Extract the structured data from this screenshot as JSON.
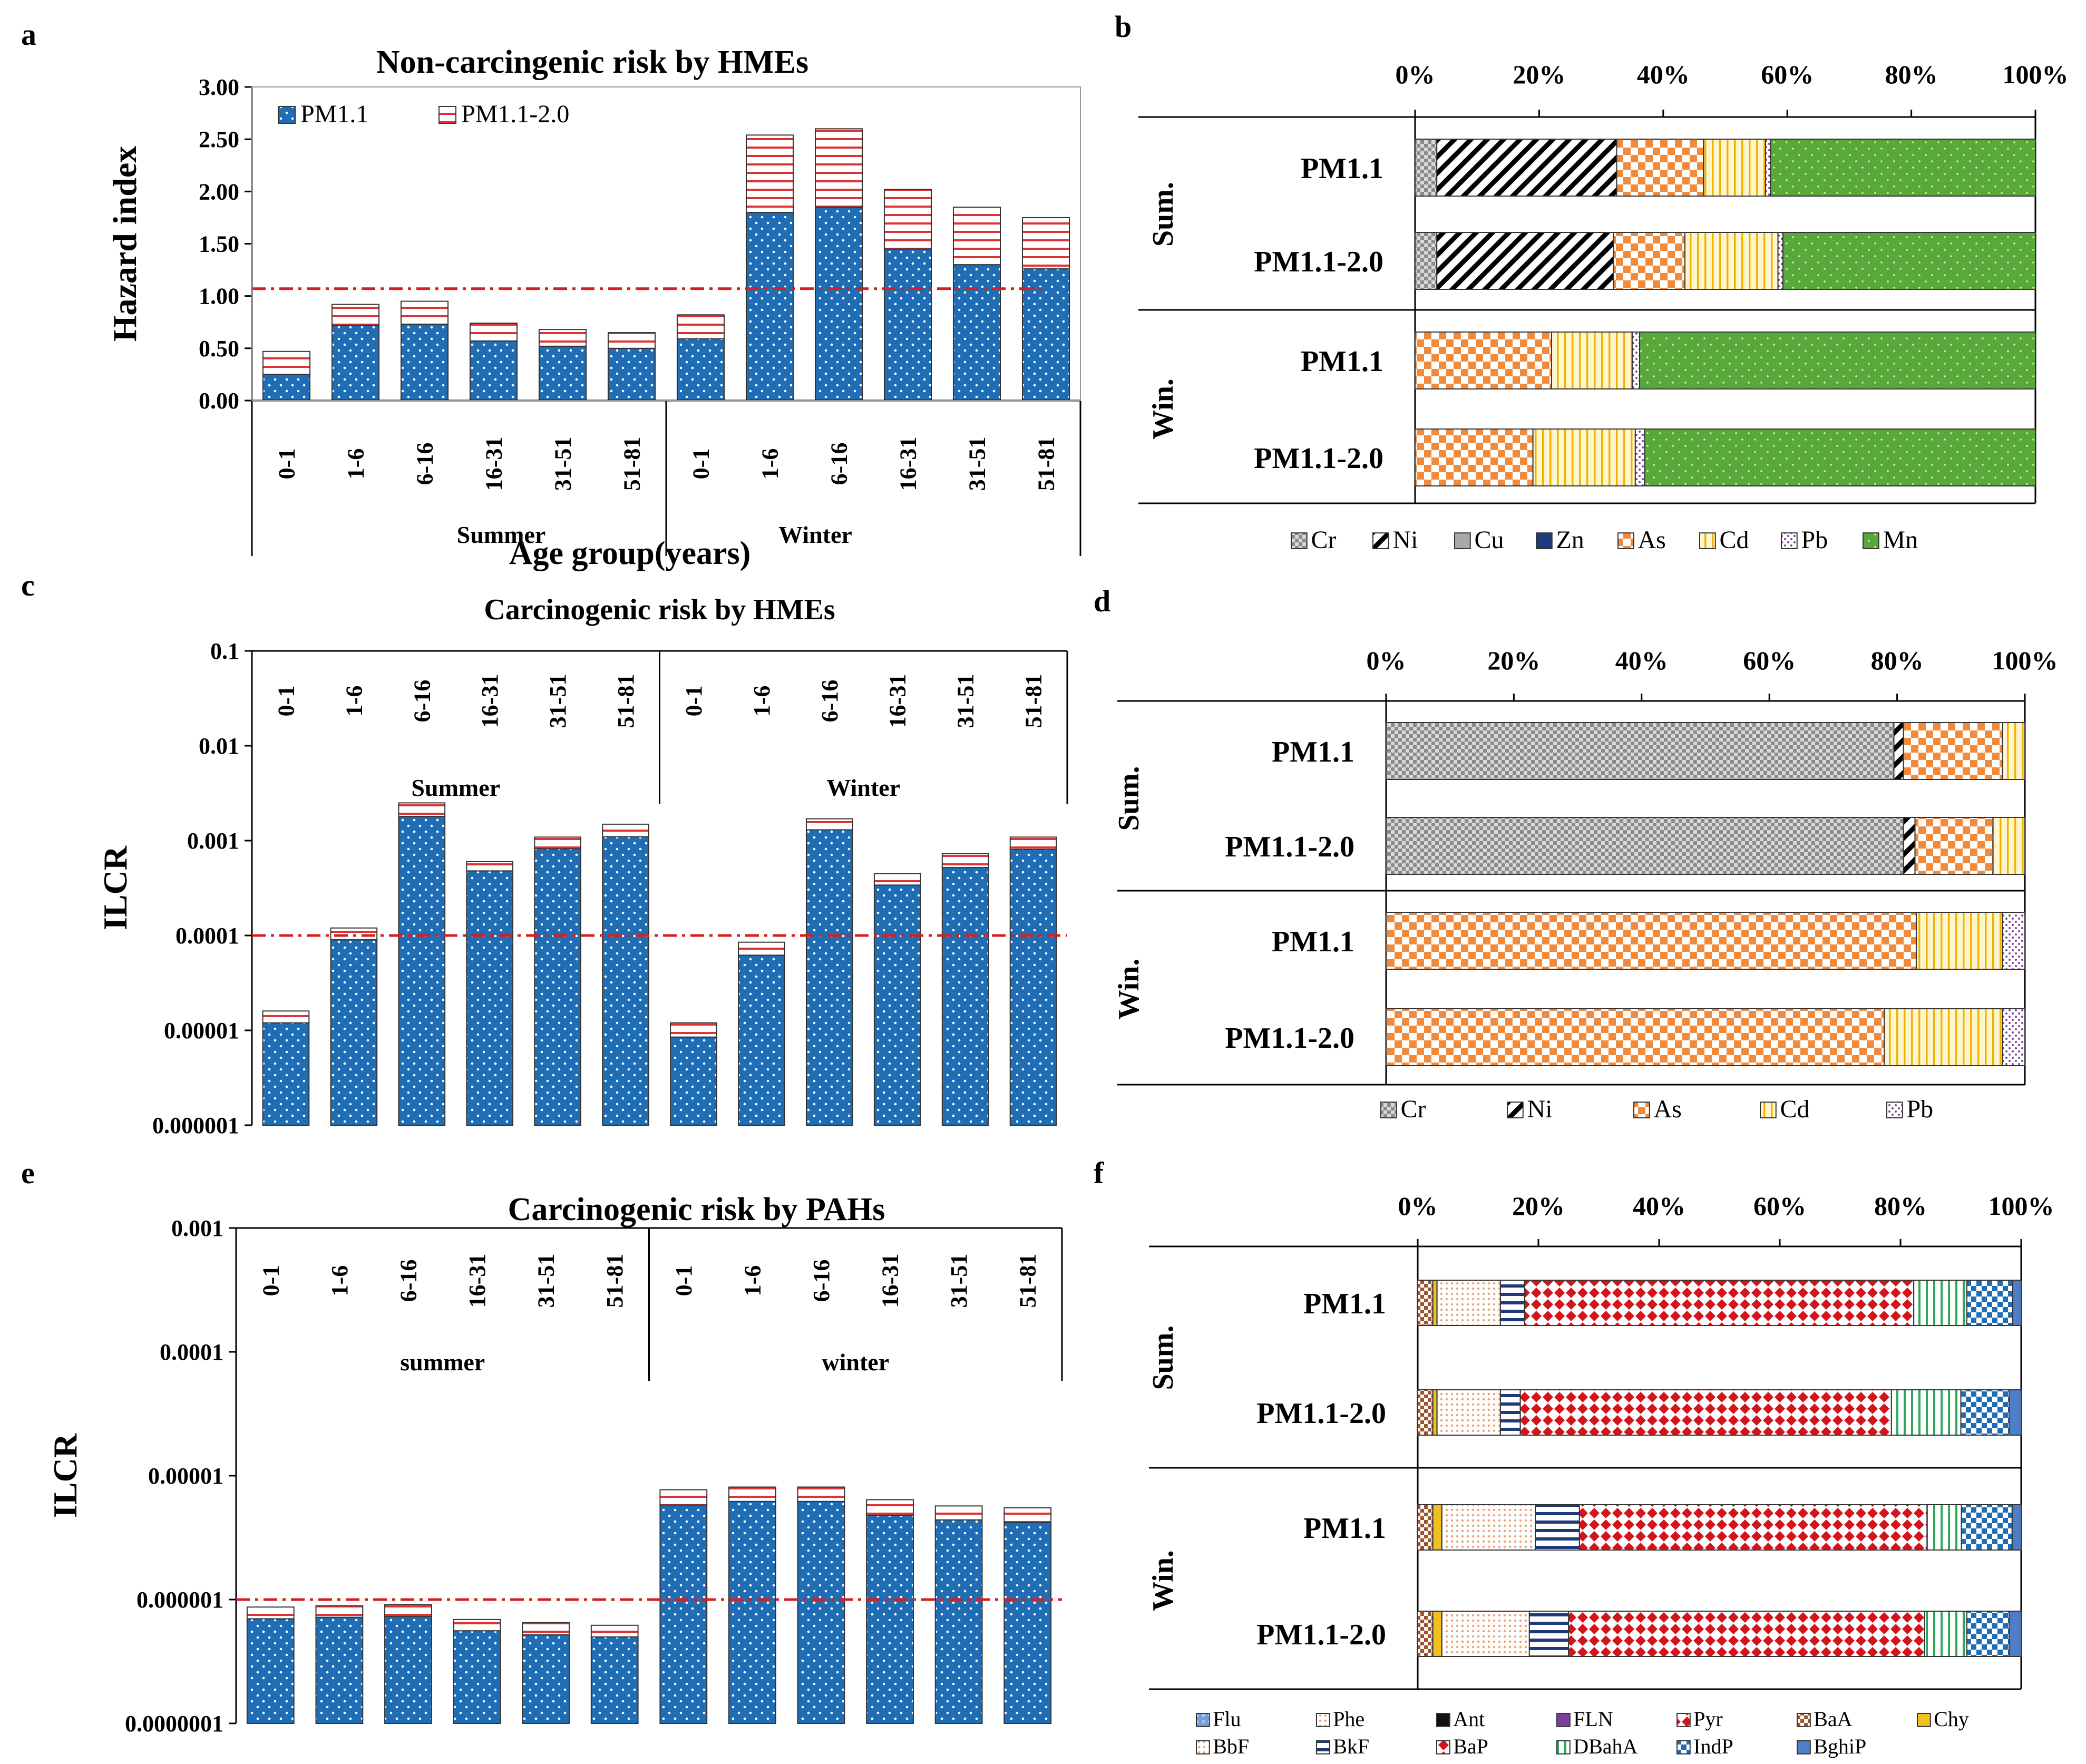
{
  "panels": {
    "a": {
      "letter": "a"
    },
    "b": {
      "letter": "b"
    },
    "c": {
      "letter": "c"
    },
    "d": {
      "letter": "d"
    },
    "e": {
      "letter": "e"
    },
    "f": {
      "letter": "f"
    }
  },
  "chart_data": [
    {
      "id": "a",
      "type": "bar",
      "stacked": true,
      "title": "Non-carcingenic risk by HMEs",
      "ylabel": "Hazard index",
      "xlabel": "Age group(years)",
      "ylim": [
        0,
        3
      ],
      "yticks": [
        "0.00",
        "0.50",
        "1.00",
        "1.50",
        "2.00",
        "2.50",
        "3.00"
      ],
      "categories": [
        "0-1",
        "1-6",
        "6-16",
        "16-31",
        "31-51",
        "51-81",
        "0-1",
        "1-6",
        "6-16",
        "16-31",
        "31-51",
        "51-81"
      ],
      "groups": [
        "Summer",
        "Winter"
      ],
      "threshold": 1.07,
      "series": [
        {
          "name": "PM1.1",
          "values": [
            0.25,
            0.72,
            0.73,
            0.57,
            0.52,
            0.5,
            0.59,
            1.8,
            1.85,
            1.45,
            1.3,
            1.26
          ]
        },
        {
          "name": "PM1.1-2.0",
          "values": [
            0.22,
            0.2,
            0.22,
            0.17,
            0.16,
            0.15,
            0.23,
            0.74,
            0.75,
            0.57,
            0.55,
            0.49
          ]
        }
      ],
      "legend": [
        "PM1.1",
        "PM1.1-2.0"
      ]
    },
    {
      "id": "b",
      "type": "bar",
      "orientation": "horizontal",
      "stacked_percent": true,
      "axis_ticks": [
        "0%",
        "20%",
        "40%",
        "60%",
        "80%",
        "100%"
      ],
      "groups": [
        "Sum.",
        "Win."
      ],
      "rows": [
        "PM1.1",
        "PM1.1-2.0",
        "PM1.1",
        "PM1.1-2.0"
      ],
      "legend": [
        "Cr",
        "Ni",
        "Cu",
        "Zn",
        "As",
        "Cd",
        "Pb",
        "Mn"
      ],
      "series": [
        {
          "name": "Cr",
          "values": [
            3.5,
            3.5,
            0,
            0
          ]
        },
        {
          "name": "Ni",
          "values": [
            29,
            28.5,
            0,
            0
          ]
        },
        {
          "name": "Cu",
          "values": [
            0,
            0,
            0,
            0
          ]
        },
        {
          "name": "Zn",
          "values": [
            0,
            0,
            0,
            0
          ]
        },
        {
          "name": "As",
          "values": [
            14,
            11.5,
            22,
            19
          ]
        },
        {
          "name": "Cd",
          "values": [
            10,
            15,
            13,
            16.5
          ]
        },
        {
          "name": "Pb",
          "values": [
            0.8,
            0.8,
            1.2,
            1.5
          ]
        },
        {
          "name": "Mn",
          "values": [
            42.7,
            40.7,
            63.8,
            63
          ]
        }
      ]
    },
    {
      "id": "c",
      "type": "bar",
      "stacked": true,
      "yscale": "log",
      "title": "Carcinogenic risk by HMEs",
      "ylabel": "ILCR",
      "ylim": [
        1e-06,
        0.1
      ],
      "yticks": [
        "0.000001",
        "0.00001",
        "0.0001",
        "0.001",
        "0.01",
        "0.1"
      ],
      "categories": [
        "0-1",
        "1-6",
        "6-16",
        "16-31",
        "31-51",
        "51-81",
        "0-1",
        "1-6",
        "6-16",
        "16-31",
        "31-51",
        "51-81"
      ],
      "groups": [
        "Summer",
        "Winter"
      ],
      "threshold": 0.0001,
      "series": [
        {
          "name": "PM1.1",
          "values": [
            1.2e-05,
            9e-05,
            0.0018,
            0.00048,
            0.00082,
            0.0011,
            8.5e-06,
            6.2e-05,
            0.0013,
            0.00034,
            0.00052,
            0.00081
          ]
        },
        {
          "name": "PM1.1-2.0",
          "values": [
            4e-06,
            3e-05,
            0.0007,
            0.00012,
            0.00027,
            0.00039,
            3.5e-06,
            2.3e-05,
            0.0004,
            0.00011,
            0.00021,
            0.00028
          ]
        }
      ]
    },
    {
      "id": "d",
      "type": "bar",
      "orientation": "horizontal",
      "stacked_percent": true,
      "axis_ticks": [
        "0%",
        "20%",
        "40%",
        "60%",
        "80%",
        "100%"
      ],
      "groups": [
        "Sum.",
        "Win."
      ],
      "rows": [
        "PM1.1",
        "PM1.1-2.0",
        "PM1.1",
        "PM1.1-2.0"
      ],
      "legend": [
        "Cr",
        "Ni",
        "As",
        "Cd",
        "Pb"
      ],
      "series": [
        {
          "name": "Cr",
          "values": [
            79.5,
            81,
            0,
            0
          ]
        },
        {
          "name": "Ni",
          "values": [
            1.5,
            1.8,
            0,
            0
          ]
        },
        {
          "name": "As",
          "values": [
            15.5,
            12.2,
            83,
            78
          ]
        },
        {
          "name": "Cd",
          "values": [
            3.5,
            5,
            13.5,
            18.5
          ]
        },
        {
          "name": "Pb",
          "values": [
            0,
            0,
            3.5,
            3.5
          ]
        }
      ]
    },
    {
      "id": "e",
      "type": "bar",
      "stacked": true,
      "yscale": "log",
      "title": "Carcinogenic risk by PAHs",
      "ylabel": "ILCR",
      "ylim": [
        1e-07,
        0.001
      ],
      "yticks": [
        "0.0000001",
        "0.000001",
        "0.00001",
        "0.0001",
        "0.001"
      ],
      "categories": [
        "0-1",
        "1-6",
        "6-16",
        "16-31",
        "31-51",
        "51-81",
        "0-1",
        "1-6",
        "6-16",
        "16-31",
        "31-51",
        "51-81"
      ],
      "groups": [
        "summer",
        "winter"
      ],
      "threshold": 1e-06,
      "series": [
        {
          "name": "PM1.1",
          "values": [
            7e-07,
            7.2e-07,
            7.3e-07,
            5.6e-07,
            5.2e-07,
            5e-07,
            5.8e-06,
            6.2e-06,
            6.2e-06,
            4.8e-06,
            4.4e-06,
            4.2e-06
          ]
        },
        {
          "name": "PM1.1-2.0",
          "values": [
            1.7e-07,
            1.7e-07,
            1.8e-07,
            1.3e-07,
            1.3e-07,
            1.2e-07,
            1.9e-06,
            1.9e-06,
            1.9e-06,
            1.6e-06,
            1.3e-06,
            1.3e-06
          ]
        }
      ]
    },
    {
      "id": "f",
      "type": "bar",
      "orientation": "horizontal",
      "stacked_percent": true,
      "axis_ticks": [
        "0%",
        "20%",
        "40%",
        "60%",
        "80%",
        "100%"
      ],
      "groups": [
        "Sum.",
        "Win."
      ],
      "rows": [
        "PM1.1",
        "PM1.1-2.0",
        "PM1.1",
        "PM1.1-2.0"
      ],
      "legend": [
        "Flu",
        "Phe",
        "Ant",
        "FLN",
        "Pyr",
        "BaA",
        "Chy",
        "BbF",
        "BkF",
        "BaP",
        "DBahA",
        "IndP",
        "BghiP"
      ],
      "series": [
        {
          "name": "Flu",
          "values": [
            0,
            0,
            0,
            0
          ]
        },
        {
          "name": "Phe",
          "values": [
            0,
            0,
            0,
            0
          ]
        },
        {
          "name": "Ant",
          "values": [
            0,
            0,
            0,
            0
          ]
        },
        {
          "name": "FLN",
          "values": [
            0,
            0,
            0,
            0
          ]
        },
        {
          "name": "Pyr",
          "values": [
            0,
            0,
            0,
            0
          ]
        },
        {
          "name": "BaA",
          "values": [
            2.5,
            2.5,
            2.5,
            2.5
          ]
        },
        {
          "name": "Chy",
          "values": [
            0.7,
            0.7,
            1.5,
            1.5
          ]
        },
        {
          "name": "BbF",
          "values": [
            10.5,
            10.5,
            15.5,
            14.5
          ]
        },
        {
          "name": "BkF",
          "values": [
            4,
            3.3,
            7.3,
            6.5
          ]
        },
        {
          "name": "BaP",
          "values": [
            64.5,
            61.5,
            57.6,
            59
          ]
        },
        {
          "name": "DBahA",
          "values": [
            8.8,
            11.5,
            5.7,
            7
          ]
        },
        {
          "name": "IndP",
          "values": [
            7.6,
            8,
            8.4,
            7
          ]
        },
        {
          "name": "BghiP",
          "values": [
            1.4,
            2,
            1.5,
            2
          ]
        }
      ]
    }
  ]
}
